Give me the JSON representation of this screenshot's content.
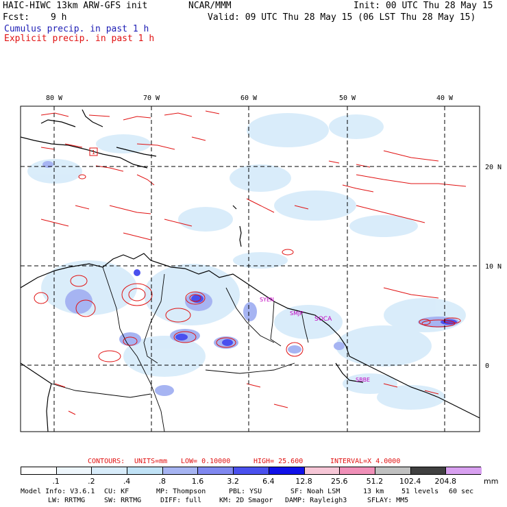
{
  "header": {
    "model_title": "HAIC-HIWC 13km ARW-GFS init",
    "org": "NCAR/MMM",
    "init": "Init: 00 UTC Thu 28 May 15",
    "fcst_label": "Fcst:",
    "fcst_value": "9 h",
    "valid": "Valid: 09 UTC Thu 28 May 15 (06 LST Thu 28 May 15)",
    "field1": "Cumulus precip. in past 1 h",
    "field2": "Explicit precip. in past 1 h",
    "field1_color": "#1c1cb4",
    "field2_color": "#e01010"
  },
  "map": {
    "lon_labels": [
      "80 W",
      "70 W",
      "60 W",
      "50 W",
      "40 W"
    ],
    "lat_labels": [
      "20 N",
      "10 N",
      "0"
    ],
    "stations": [
      "1",
      "SYEN",
      "SMJP",
      "SOCA",
      "SBBE"
    ],
    "station_color": "#c000c0"
  },
  "contours": {
    "contours_label": "CONTOURS:",
    "units": "UNITS=mm",
    "low": "LOW= 0.10000",
    "high": "HIGH= 25.600",
    "interval": "INTERVAL=X 4.0000"
  },
  "colorbar": {
    "labels": [
      ".1",
      ".2",
      ".4",
      ".8",
      "1.6",
      "3.2",
      "6.4",
      "12.8",
      "25.6",
      "51.2",
      "102.4",
      "204.8"
    ],
    "unit": "mm",
    "colors": [
      "#ffffff",
      "#eef6fc",
      "#d8ecfa",
      "#c0e2f6",
      "#a6b4f2",
      "#8088f0",
      "#4a50ee",
      "#1010e8",
      "#f6c6d6",
      "#f090b8",
      "#c0c0c0",
      "#404040",
      "#d8a0f0"
    ]
  },
  "footer": {
    "line1": [
      {
        "label": "Model Info: V3.6.1"
      },
      {
        "label": "CU: KF"
      },
      {
        "label": "MP: Thompson"
      },
      {
        "label": "PBL: YSU"
      },
      {
        "label": "SF: Noah LSM"
      },
      {
        "label": "13 km"
      },
      {
        "label": "51 levels"
      },
      {
        "label": "60 sec"
      }
    ],
    "line2": [
      {
        "label": "LW: RRTMG"
      },
      {
        "label": "SW: RRTMG"
      },
      {
        "label": "DIFF: full"
      },
      {
        "label": "KM: 2D Smagor"
      },
      {
        "label": "DAMP: Rayleigh3"
      },
      {
        "label": "SFLAY: MM5"
      }
    ]
  }
}
